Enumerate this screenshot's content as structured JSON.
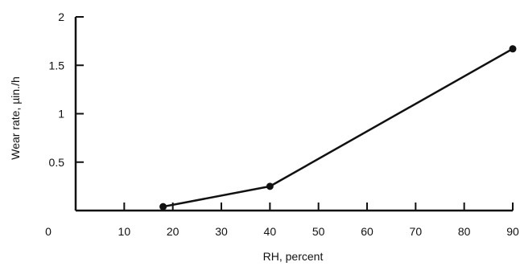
{
  "chart_data": {
    "type": "line",
    "title": "",
    "xlabel": "RH, percent",
    "ylabel": "Wear rate, µin./h",
    "xlim": [
      0,
      90
    ],
    "ylim": [
      0,
      2
    ],
    "x_ticks": [
      10,
      20,
      30,
      40,
      50,
      60,
      70,
      80,
      90
    ],
    "y_ticks": [
      0.5,
      1,
      1.5,
      2
    ],
    "origin_label": "0",
    "grid": false,
    "series": [
      {
        "x": [
          18,
          40,
          90
        ],
        "y": [
          0.04,
          0.25,
          1.67
        ]
      }
    ]
  }
}
